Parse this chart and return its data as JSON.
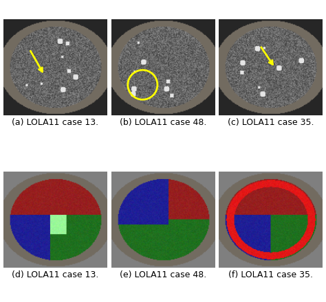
{
  "title": "",
  "captions": [
    "(a) LOLA11 case 13.",
    "(b) LOLA11 case 48.",
    "(c) LOLA11 case 35.",
    "(d) LOLA11 case 13.",
    "(e) LOLA11 case 48.",
    "(f) LOLA11 case 35."
  ],
  "caption_fontsize": 9,
  "figsize": [
    4.74,
    4.4
  ],
  "dpi": 100,
  "background_color": "#ffffff",
  "arrow_color": "#ffff00",
  "circle_color": "#ffff00",
  "row1_colors": {
    "lung_dark": "#1a1a1a",
    "lung_mid": "#555555",
    "lung_light": "#aaaaaa",
    "background": "#808080"
  },
  "row2_lobe_colors": {
    "dark_red": "#8b0000",
    "blue": "#00008b",
    "green": "#006400",
    "light_green": "#90ee90",
    "dark_red2": "#8b2020"
  },
  "hspace": 0.05,
  "wspace": 0.05
}
